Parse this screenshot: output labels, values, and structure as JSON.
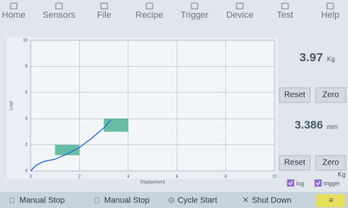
{
  "menu": [
    "Home",
    "Sensors",
    "File",
    "Recipe",
    "Trigger",
    "Device",
    "Test",
    "Help"
  ],
  "chart": {
    "type": "line",
    "x_label": "Displacement",
    "y_label": "Load",
    "xlim": [
      0,
      10
    ],
    "ylim": [
      0,
      10
    ],
    "xticks": [
      0,
      2,
      4,
      6,
      8,
      10
    ],
    "yticks": [
      0,
      2,
      4,
      6,
      8,
      10
    ],
    "grid": true,
    "series": [
      {
        "color": "#2f6fd0",
        "x": [
          0,
          0.2,
          0.5,
          1,
          1.5,
          2,
          2.5,
          3,
          3.3
        ],
        "values": [
          0,
          0.4,
          0.7,
          0.9,
          1.3,
          1.8,
          2.5,
          3.3,
          3.9
        ]
      }
    ],
    "windows": [
      {
        "x": [
          1,
          2
        ],
        "y": [
          1.2,
          2
        ],
        "color": "#3aa88a"
      },
      {
        "x": [
          3,
          4
        ],
        "y": [
          3,
          4
        ],
        "color": "#3aa88a"
      }
    ]
  },
  "load": {
    "value": 3.97,
    "unit": "Kg",
    "reset": "Reset",
    "zero": "Zero"
  },
  "displacement": {
    "value": 3.386,
    "unit": "mm",
    "reset": "Reset",
    "zero": "Zero"
  },
  "axis_unit": "Kg",
  "options": [
    {
      "label": "log",
      "checked": true
    },
    {
      "label": "trigger",
      "checked": true
    }
  ],
  "buttons": [
    "Manual Stop",
    "Manual Stop",
    "Cycle Start",
    "Shut Down"
  ]
}
